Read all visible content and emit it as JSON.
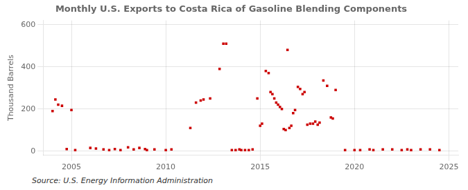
{
  "chart_data": {
    "type": "scatter",
    "title": "Monthly U.S. Exports to Costa Rica of Gasoline Blending Components",
    "ylabel": "Thousand Barrels",
    "annotation": "Source: U.S. Energy Information Administration",
    "color": "#cc0000",
    "marker": "square",
    "grid": true,
    "xlim": [
      2003.5,
      2025.5
    ],
    "ylim": [
      -20,
      620
    ],
    "xticks": [
      2005,
      2010,
      2015,
      2020,
      2025
    ],
    "yticks": [
      0,
      200,
      400,
      600
    ],
    "x": [
      2004.0,
      2004.15,
      2004.3,
      2004.5,
      2004.75,
      2005.0,
      2005.2,
      2006.0,
      2006.3,
      2006.7,
      2007.0,
      2007.3,
      2007.6,
      2008.0,
      2008.3,
      2008.6,
      2008.9,
      2009.0,
      2009.4,
      2010.0,
      2010.3,
      2011.3,
      2011.6,
      2011.85,
      2012.0,
      2012.35,
      2012.85,
      2013.05,
      2013.2,
      2013.5,
      2013.7,
      2013.9,
      2014.0,
      2014.2,
      2014.4,
      2014.6,
      2014.85,
      2015.0,
      2015.1,
      2015.3,
      2015.45,
      2015.55,
      2015.65,
      2015.75,
      2015.85,
      2015.95,
      2016.05,
      2016.15,
      2016.25,
      2016.35,
      2016.45,
      2016.55,
      2016.65,
      2016.75,
      2016.85,
      2017.0,
      2017.12,
      2017.25,
      2017.35,
      2017.5,
      2017.65,
      2017.8,
      2017.92,
      2018.05,
      2018.15,
      2018.35,
      2018.55,
      2018.75,
      2018.85,
      2019.0,
      2019.5,
      2020.0,
      2020.3,
      2020.8,
      2021.0,
      2021.5,
      2022.0,
      2022.5,
      2022.8,
      2023.0,
      2023.5,
      2024.0,
      2024.5
    ],
    "values": [
      190,
      245,
      220,
      215,
      10,
      195,
      5,
      15,
      12,
      8,
      5,
      10,
      5,
      18,
      8,
      15,
      10,
      5,
      8,
      5,
      8,
      110,
      230,
      240,
      245,
      250,
      390,
      510,
      510,
      5,
      5,
      8,
      5,
      5,
      5,
      8,
      250,
      120,
      130,
      380,
      370,
      280,
      270,
      250,
      230,
      220,
      210,
      200,
      105,
      100,
      480,
      110,
      120,
      180,
      195,
      305,
      295,
      270,
      280,
      125,
      130,
      130,
      140,
      125,
      135,
      335,
      310,
      160,
      155,
      290,
      5,
      5,
      5,
      8,
      5,
      8,
      8,
      5,
      8,
      5,
      8,
      8,
      5
    ]
  }
}
